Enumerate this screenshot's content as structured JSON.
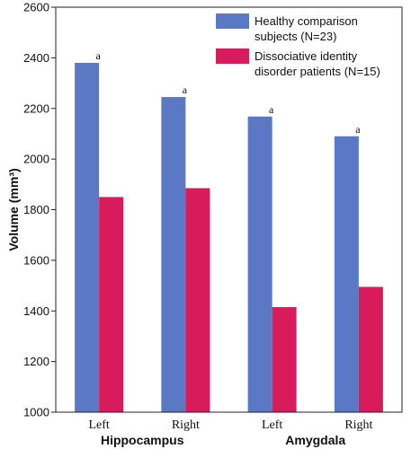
{
  "chart_data": {
    "type": "bar",
    "ylabel": "Volume (mm³)",
    "ylim": [
      1000,
      2600
    ],
    "yticks": [
      1000,
      1200,
      1400,
      1600,
      1800,
      2000,
      2200,
      2400,
      2600
    ],
    "categories": [
      "Left",
      "Right",
      "Left",
      "Right"
    ],
    "groups": [
      {
        "label": "Hippocampus",
        "categories": [
          "Left",
          "Right"
        ]
      },
      {
        "label": "Amygdala",
        "categories": [
          "Left",
          "Right"
        ]
      }
    ],
    "series": [
      {
        "name": "Healthy comparison subjects (N=23)",
        "legend_lines": [
          "Healthy comparison",
          "subjects (N=23)"
        ],
        "color": "#5b78c4",
        "values": [
          2380,
          2245,
          2168,
          2090
        ],
        "annotations": [
          "a",
          "a",
          "a",
          "a"
        ]
      },
      {
        "name": "Dissociative identity disorder patients (N=15)",
        "legend_lines": [
          "Dissociative identity",
          "disorder patients (N=15)"
        ],
        "color": "#d81b5b",
        "values": [
          1850,
          1885,
          1415,
          1495
        ],
        "annotations": [
          "",
          "",
          "",
          ""
        ]
      }
    ],
    "legend": "top-right",
    "grid": false
  }
}
